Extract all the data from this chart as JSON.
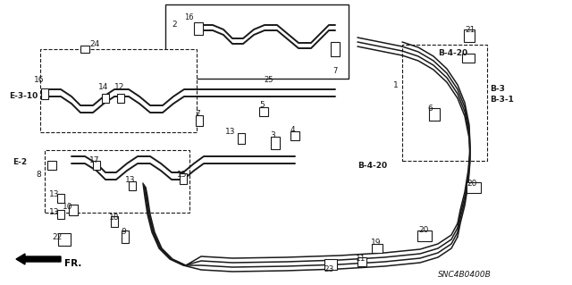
{
  "bg_color": "#ffffff",
  "line_color": "#1a1a1a",
  "part_code": "SNC4B0400B",
  "figsize": [
    6.4,
    3.19
  ],
  "dpi": 100,
  "xlim": [
    0,
    640
  ],
  "ylim": [
    0,
    319
  ]
}
